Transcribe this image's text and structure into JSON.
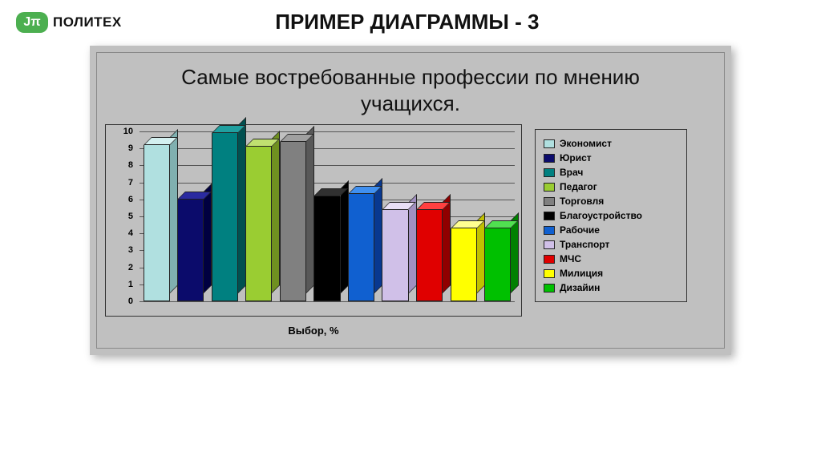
{
  "logo": {
    "badge": "Jπ",
    "text": "ПОЛИТЕХ"
  },
  "page_title": "ПРИМЕР ДИАГРАММЫ - 3",
  "chart": {
    "type": "bar",
    "title": "Самые востребованные профессии по мнению учащихся.",
    "xlabel": "Выбор, %",
    "ylim": [
      0,
      10
    ],
    "ytick_step": 1,
    "yticks": [
      0,
      1,
      2,
      3,
      4,
      5,
      6,
      7,
      8,
      9,
      10
    ],
    "background_color": "#c0c0c0",
    "grid_color": "#555555",
    "bar_depth": 10,
    "series": [
      {
        "label": "Экономист",
        "value": 9.2,
        "front": "#b0e0e0",
        "top": "#d4f0f0",
        "side": "#80b0b0"
      },
      {
        "label": "Юрист",
        "value": 6.0,
        "front": "#0b0b6b",
        "top": "#2a2aa0",
        "side": "#000040"
      },
      {
        "label": "Врач",
        "value": 9.9,
        "front": "#008080",
        "top": "#20a0a0",
        "side": "#005050"
      },
      {
        "label": "Педагог",
        "value": 9.1,
        "front": "#9acd32",
        "top": "#c0e070",
        "side": "#6f9020"
      },
      {
        "label": "Торговля",
        "value": 9.4,
        "front": "#808080",
        "top": "#a0a0a0",
        "side": "#585858"
      },
      {
        "label": "Благоустройство",
        "value": 6.2,
        "front": "#000000",
        "top": "#303030",
        "side": "#000000"
      },
      {
        "label": "Рабочие",
        "value": 6.3,
        "front": "#1060d0",
        "top": "#4090f0",
        "side": "#083890"
      },
      {
        "label": "Транспорт",
        "value": 5.4,
        "front": "#d0c0e8",
        "top": "#e8dff5",
        "side": "#a090c0"
      },
      {
        "label": "МЧС",
        "value": 5.4,
        "front": "#e00000",
        "top": "#ff4040",
        "side": "#900000"
      },
      {
        "label": "Милиция",
        "value": 4.3,
        "front": "#ffff00",
        "top": "#ffff90",
        "side": "#c0c000"
      },
      {
        "label": "Дизайин",
        "value": 4.3,
        "front": "#00c000",
        "top": "#50e050",
        "side": "#008000"
      }
    ]
  }
}
